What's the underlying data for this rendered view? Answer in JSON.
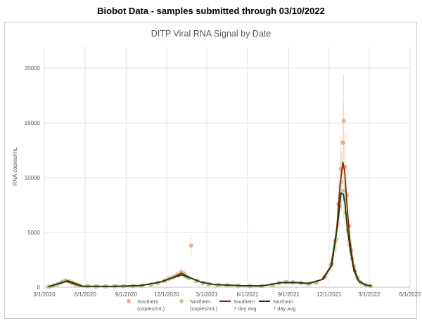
{
  "header": {
    "title": "Biobot Data - samples submitted through 03/10/2022"
  },
  "chart_data": {
    "type": "scatter",
    "title": "DITP Viral RNA Signal by Date",
    "xlabel": "",
    "ylabel": "RNA copies/mL",
    "ylim": [
      0,
      22000
    ],
    "yticks": [
      0,
      5000,
      10000,
      15000,
      20000
    ],
    "ytick_labels": [
      "0",
      "5000",
      "10000",
      "15000",
      "20000"
    ],
    "xlim": [
      "2020-03-01",
      "2022-06-01"
    ],
    "xticks": [
      "2020-03-01",
      "2020-06-01",
      "2020-09-01",
      "2020-12-01",
      "2021-03-01",
      "2021-06-01",
      "2021-09-01",
      "2021-12-01",
      "2022-03-01",
      "2022-06-01"
    ],
    "xtick_labels": [
      "3/1/2020",
      "6/1/2020",
      "9/1/2020",
      "12/1/2020",
      "3/1/2021",
      "6/1/2021",
      "9/1/2021",
      "12/1/2021",
      "3/1/2022",
      "6/1/2022"
    ],
    "grid": true,
    "legend_position": "bottom",
    "series": [
      {
        "name": "Southern (copies/mL)",
        "kind": "points",
        "color": "#e8a07a",
        "points": [
          [
            "2020-03-10",
            40
          ],
          [
            "2020-03-20",
            120
          ],
          [
            "2020-03-30",
            260
          ],
          [
            "2020-04-08",
            420
          ],
          [
            "2020-04-16",
            560
          ],
          [
            "2020-04-24",
            520
          ],
          [
            "2020-05-02",
            380
          ],
          [
            "2020-05-10",
            240
          ],
          [
            "2020-05-18",
            140
          ],
          [
            "2020-06-05",
            90
          ],
          [
            "2020-06-25",
            70
          ],
          [
            "2020-07-15",
            60
          ],
          [
            "2020-08-05",
            80
          ],
          [
            "2020-08-25",
            90
          ],
          [
            "2020-09-15",
            110
          ],
          [
            "2020-10-05",
            140
          ],
          [
            "2020-10-25",
            230
          ],
          [
            "2020-11-10",
            380
          ],
          [
            "2020-11-25",
            560
          ],
          [
            "2020-12-05",
            760
          ],
          [
            "2020-12-15",
            900
          ],
          [
            "2020-12-25",
            1150
          ],
          [
            "2021-01-03",
            1400
          ],
          [
            "2021-01-10",
            1200
          ],
          [
            "2021-01-18",
            900
          ],
          [
            "2021-01-25",
            3800
          ],
          [
            "2021-02-05",
            560
          ],
          [
            "2021-02-20",
            380
          ],
          [
            "2021-03-05",
            280
          ],
          [
            "2021-03-25",
            180
          ],
          [
            "2021-04-15",
            160
          ],
          [
            "2021-05-10",
            130
          ],
          [
            "2021-06-05",
            100
          ],
          [
            "2021-07-01",
            110
          ],
          [
            "2021-07-25",
            200
          ],
          [
            "2021-08-10",
            380
          ],
          [
            "2021-08-25",
            460
          ],
          [
            "2021-09-10",
            430
          ],
          [
            "2021-09-28",
            390
          ],
          [
            "2021-10-15",
            330
          ],
          [
            "2021-11-01",
            420
          ],
          [
            "2021-11-20",
            900
          ],
          [
            "2021-12-05",
            2000
          ],
          [
            "2021-12-15",
            4200
          ],
          [
            "2021-12-22",
            7600
          ],
          [
            "2021-12-27",
            10800
          ],
          [
            "2022-01-01",
            13200
          ],
          [
            "2022-01-03",
            15200
          ],
          [
            "2022-01-06",
            11000
          ],
          [
            "2022-01-10",
            8400
          ],
          [
            "2022-01-15",
            5600
          ],
          [
            "2022-01-20",
            3400
          ],
          [
            "2022-01-26",
            1900
          ],
          [
            "2022-02-02",
            900
          ],
          [
            "2022-02-10",
            450
          ],
          [
            "2022-02-20",
            220
          ],
          [
            "2022-03-03",
            130
          ]
        ]
      },
      {
        "name": "Northern (copies/mL)",
        "kind": "points",
        "color": "#a8c98a",
        "points": [
          [
            "2020-03-12",
            60
          ],
          [
            "2020-03-22",
            180
          ],
          [
            "2020-04-01",
            330
          ],
          [
            "2020-04-10",
            480
          ],
          [
            "2020-04-18",
            620
          ],
          [
            "2020-04-26",
            560
          ],
          [
            "2020-05-04",
            420
          ],
          [
            "2020-05-12",
            280
          ],
          [
            "2020-05-20",
            160
          ],
          [
            "2020-06-08",
            100
          ],
          [
            "2020-06-28",
            80
          ],
          [
            "2020-07-18",
            70
          ],
          [
            "2020-08-08",
            90
          ],
          [
            "2020-08-28",
            100
          ],
          [
            "2020-09-18",
            120
          ],
          [
            "2020-10-08",
            160
          ],
          [
            "2020-10-28",
            260
          ],
          [
            "2020-11-12",
            420
          ],
          [
            "2020-11-28",
            620
          ],
          [
            "2020-12-08",
            820
          ],
          [
            "2020-12-18",
            960
          ],
          [
            "2020-12-28",
            1080
          ],
          [
            "2021-01-05",
            1180
          ],
          [
            "2021-01-12",
            1000
          ],
          [
            "2021-01-20",
            820
          ],
          [
            "2021-02-08",
            600
          ],
          [
            "2021-02-22",
            400
          ],
          [
            "2021-03-08",
            300
          ],
          [
            "2021-03-28",
            200
          ],
          [
            "2021-04-18",
            170
          ],
          [
            "2021-05-12",
            140
          ],
          [
            "2021-06-08",
            110
          ],
          [
            "2021-07-04",
            120
          ],
          [
            "2021-07-28",
            220
          ],
          [
            "2021-08-12",
            400
          ],
          [
            "2021-08-28",
            480
          ],
          [
            "2021-09-12",
            440
          ],
          [
            "2021-09-30",
            400
          ],
          [
            "2021-10-18",
            340
          ],
          [
            "2021-11-03",
            440
          ],
          [
            "2021-11-22",
            950
          ],
          [
            "2021-12-07",
            2100
          ],
          [
            "2021-12-17",
            4400
          ],
          [
            "2021-12-24",
            7400
          ],
          [
            "2021-12-29",
            9600
          ],
          [
            "2022-01-02",
            8800
          ],
          [
            "2022-01-05",
            8000
          ],
          [
            "2022-01-08",
            6800
          ],
          [
            "2022-01-12",
            5200
          ],
          [
            "2022-01-17",
            3800
          ],
          [
            "2022-01-22",
            2600
          ],
          [
            "2022-01-28",
            1500
          ],
          [
            "2022-02-04",
            750
          ],
          [
            "2022-02-12",
            380
          ],
          [
            "2022-02-22",
            200
          ],
          [
            "2022-03-05",
            120
          ]
        ]
      },
      {
        "name": "Southern 7 day avg",
        "kind": "line",
        "color": "#8b2500",
        "points": [
          [
            "2020-03-10",
            40
          ],
          [
            "2020-04-01",
            300
          ],
          [
            "2020-04-20",
            540
          ],
          [
            "2020-05-10",
            260
          ],
          [
            "2020-05-25",
            80
          ],
          [
            "2020-06-05",
            70
          ],
          [
            "2020-08-01",
            70
          ],
          [
            "2020-10-01",
            140
          ],
          [
            "2020-11-15",
            450
          ],
          [
            "2020-12-15",
            880
          ],
          [
            "2021-01-03",
            1280
          ],
          [
            "2021-01-20",
            920
          ],
          [
            "2021-02-15",
            480
          ],
          [
            "2021-03-15",
            250
          ],
          [
            "2021-05-15",
            140
          ],
          [
            "2021-07-01",
            110
          ],
          [
            "2021-08-15",
            410
          ],
          [
            "2021-09-15",
            420
          ],
          [
            "2021-10-15",
            330
          ],
          [
            "2021-11-15",
            700
          ],
          [
            "2021-12-05",
            1900
          ],
          [
            "2021-12-18",
            5200
          ],
          [
            "2021-12-26",
            9500
          ],
          [
            "2022-01-01",
            11400
          ],
          [
            "2022-01-05",
            10600
          ],
          [
            "2022-01-10",
            7600
          ],
          [
            "2022-01-17",
            4200
          ],
          [
            "2022-01-25",
            1900
          ],
          [
            "2022-02-05",
            600
          ],
          [
            "2022-02-20",
            210
          ],
          [
            "2022-03-05",
            120
          ]
        ]
      },
      {
        "name": "Northern 7 day avg",
        "kind": "line",
        "color": "#1e3d14",
        "points": [
          [
            "2020-03-12",
            60
          ],
          [
            "2020-04-03",
            340
          ],
          [
            "2020-04-22",
            590
          ],
          [
            "2020-05-12",
            300
          ],
          [
            "2020-05-26",
            90
          ],
          [
            "2020-06-08",
            90
          ],
          [
            "2020-08-04",
            80
          ],
          [
            "2020-10-04",
            150
          ],
          [
            "2020-11-18",
            480
          ],
          [
            "2020-12-18",
            920
          ],
          [
            "2021-01-05",
            1120
          ],
          [
            "2021-01-22",
            860
          ],
          [
            "2021-02-18",
            450
          ],
          [
            "2021-03-18",
            240
          ],
          [
            "2021-05-18",
            140
          ],
          [
            "2021-07-04",
            120
          ],
          [
            "2021-08-18",
            430
          ],
          [
            "2021-09-18",
            430
          ],
          [
            "2021-10-18",
            340
          ],
          [
            "2021-11-18",
            740
          ],
          [
            "2021-12-07",
            2000
          ],
          [
            "2021-12-20",
            5600
          ],
          [
            "2021-12-28",
            8600
          ],
          [
            "2022-01-02",
            8500
          ],
          [
            "2022-01-06",
            7600
          ],
          [
            "2022-01-11",
            5400
          ],
          [
            "2022-01-18",
            3300
          ],
          [
            "2022-01-26",
            1500
          ],
          [
            "2022-02-06",
            520
          ],
          [
            "2022-02-22",
            190
          ],
          [
            "2022-03-06",
            110
          ]
        ]
      }
    ]
  },
  "legend": {
    "items": [
      {
        "line1": "Southern",
        "line2": "(copies/mL)",
        "kind": "marker",
        "color": "#e8a07a"
      },
      {
        "line1": "Northern",
        "line2": "(copies/mL)",
        "kind": "marker",
        "color": "#a8c98a"
      },
      {
        "line1": "Southern",
        "line2": "7 day avg",
        "kind": "line",
        "color": "#8b2500"
      },
      {
        "line1": "Northern",
        "line2": "7 day avg",
        "kind": "line",
        "color": "#1e3d14"
      }
    ]
  }
}
